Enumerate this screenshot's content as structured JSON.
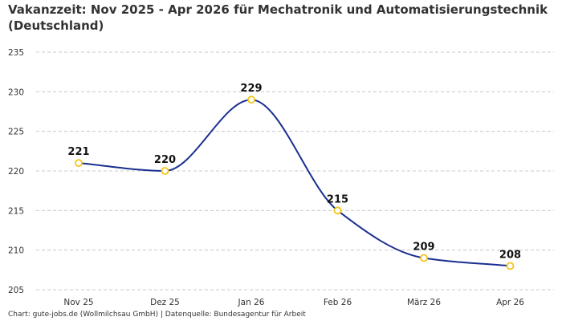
{
  "colors": {
    "line": "#1a2f8f",
    "marker_fill": "#ffffff",
    "marker_stroke": "#f5c518",
    "grid": "#c8c8c8",
    "text": "#333333"
  },
  "chart_data": {
    "type": "line",
    "title": "Vakanzzeit: Nov 2025 - Apr 2026 für Mechatronik und Automatisierungstechnik (Deutschland)",
    "xlabel": "",
    "ylabel": "",
    "categories": [
      "Nov 25",
      "Dez 25",
      "Jan 26",
      "Feb 26",
      "März 26",
      "Apr 26"
    ],
    "series": [
      {
        "values": [
          221,
          220,
          229,
          215,
          209,
          208
        ]
      }
    ],
    "data_labels": [
      "221",
      "220",
      "229",
      "215",
      "209",
      "208"
    ],
    "ylim": [
      205,
      235
    ],
    "yticks": [
      "205",
      "210",
      "215",
      "220",
      "225",
      "230",
      "235"
    ],
    "grid": true,
    "grid_style": "dashed horizontal",
    "line_smoothing": "monotone curve",
    "legend": "none"
  },
  "footer": "Chart: gute-jobs.de (Wollmilchsau GmbH) | Datenquelle: Bundesagentur für Arbeit"
}
